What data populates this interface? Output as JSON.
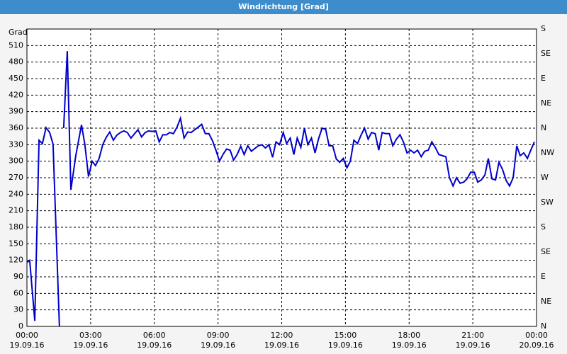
{
  "chart_data": {
    "type": "line",
    "title": "Windrichtung [Grad]",
    "ylabel": "Grad",
    "xlim": [
      0,
      24
    ],
    "ylim": [
      0,
      540
    ],
    "y2lim": [
      0,
      540
    ],
    "grid": true,
    "xticks": [
      {
        "value": 0,
        "label": "00:00\n19.09.16"
      },
      {
        "value": 3,
        "label": "03:00\n19.09.16"
      },
      {
        "value": 6,
        "label": "06:00\n19.09.16"
      },
      {
        "value": 9,
        "label": "09:00\n19.09.16"
      },
      {
        "value": 12,
        "label": "12:00\n19.09.16"
      },
      {
        "value": 15,
        "label": "15:00\n19.09.16"
      },
      {
        "value": 18,
        "label": "18:00\n19.09.16"
      },
      {
        "value": 21,
        "label": "21:00\n19.09.16"
      },
      {
        "value": 24,
        "label": "00:00\n20.09.16"
      }
    ],
    "yticks": [
      0,
      30,
      60,
      90,
      120,
      150,
      180,
      210,
      240,
      270,
      300,
      330,
      360,
      390,
      420,
      450,
      480,
      510
    ],
    "y2ticks": [
      {
        "value": 0,
        "label": "N"
      },
      {
        "value": 45,
        "label": "NE"
      },
      {
        "value": 90,
        "label": "E"
      },
      {
        "value": 135,
        "label": "SE"
      },
      {
        "value": 180,
        "label": "S"
      },
      {
        "value": 225,
        "label": "SW"
      },
      {
        "value": 270,
        "label": "W"
      },
      {
        "value": 315,
        "label": "NW"
      },
      {
        "value": 360,
        "label": "N"
      },
      {
        "value": 405,
        "label": "NE"
      },
      {
        "value": 450,
        "label": "E"
      },
      {
        "value": 495,
        "label": "SE"
      },
      {
        "value": 540,
        "label": "S"
      }
    ],
    "series": [
      {
        "name": "Windrichtung",
        "color": "#0000cc",
        "x": [
          0.0,
          0.13,
          0.37,
          0.57,
          0.73,
          0.9,
          1.07,
          1.23,
          1.53,
          1.6,
          1.73,
          1.9,
          2.07,
          2.3,
          2.57,
          2.73,
          2.9,
          3.07,
          3.23,
          3.4,
          3.57,
          3.73,
          3.9,
          4.07,
          4.23,
          4.4,
          4.57,
          4.73,
          4.9,
          5.07,
          5.23,
          5.4,
          5.57,
          5.73,
          5.9,
          6.07,
          6.23,
          6.4,
          6.57,
          6.73,
          6.9,
          7.07,
          7.23,
          7.4,
          7.57,
          7.73,
          7.9,
          8.07,
          8.23,
          8.4,
          8.57,
          8.73,
          8.9,
          9.07,
          9.23,
          9.4,
          9.57,
          9.73,
          9.9,
          10.07,
          10.23,
          10.4,
          10.57,
          10.73,
          10.9,
          11.07,
          11.23,
          11.4,
          11.57,
          11.73,
          11.9,
          12.07,
          12.23,
          12.4,
          12.57,
          12.73,
          12.9,
          13.07,
          13.23,
          13.4,
          13.57,
          13.73,
          13.9,
          14.07,
          14.23,
          14.4,
          14.57,
          14.73,
          14.9,
          15.07,
          15.23,
          15.4,
          15.57,
          15.73,
          15.9,
          16.07,
          16.23,
          16.4,
          16.57,
          16.73,
          16.9,
          17.07,
          17.23,
          17.4,
          17.57,
          17.73,
          17.9,
          18.07,
          18.23,
          18.4,
          18.57,
          18.73,
          18.9,
          19.07,
          19.23,
          19.4,
          19.57,
          19.73,
          19.9,
          20.07,
          20.23,
          20.4,
          20.57,
          20.73,
          20.9,
          21.07,
          21.23,
          21.4,
          21.57,
          21.73,
          21.9,
          22.07,
          22.23,
          22.4,
          22.57,
          22.73,
          22.9,
          23.07,
          23.23,
          23.4,
          23.57,
          23.73,
          23.9
        ],
        "values": [
          116,
          120,
          10,
          338,
          332,
          361,
          352,
          331,
          0,
          null,
          360,
          500,
          248,
          310,
          366,
          330,
          272,
          300,
          292,
          305,
          330,
          343,
          353,
          338,
          347,
          352,
          355,
          352,
          342,
          350,
          357,
          344,
          352,
          355,
          354,
          355,
          335,
          348,
          348,
          352,
          350,
          362,
          378,
          342,
          353,
          352,
          357,
          362,
          367,
          350,
          350,
          338,
          320,
          300,
          312,
          322,
          320,
          302,
          312,
          327,
          312,
          328,
          318,
          323,
          328,
          330,
          324,
          330,
          307,
          335,
          330,
          352,
          332,
          342,
          312,
          342,
          325,
          360,
          330,
          342,
          315,
          340,
          360,
          358,
          328,
          328,
          304,
          298,
          305,
          288,
          300,
          338,
          332,
          347,
          360,
          340,
          352,
          350,
          320,
          352,
          350,
          350,
          328,
          340,
          348,
          335,
          315,
          320,
          315,
          320,
          308,
          318,
          320,
          335,
          325,
          312,
          310,
          308,
          270,
          255,
          270,
          260,
          262,
          268,
          280,
          280,
          262,
          266,
          275,
          305,
          268,
          266,
          298,
          285,
          265,
          255,
          270,
          328,
          310,
          315,
          305,
          320,
          335
        ]
      }
    ]
  }
}
